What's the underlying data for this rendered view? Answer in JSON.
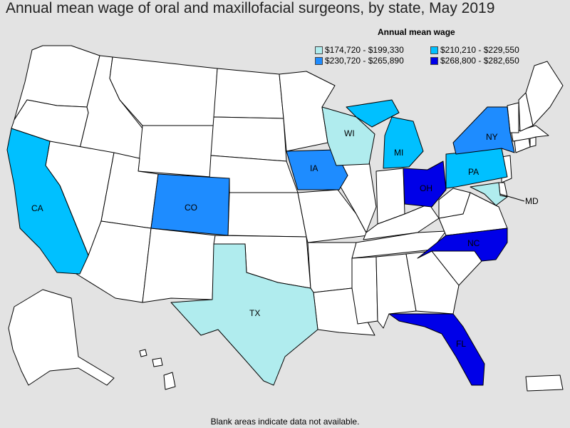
{
  "title": "Annual mean wage of oral and maxillofacial surgeons, by state, May 2019",
  "legend": {
    "title": "Annual mean wage",
    "items": [
      {
        "range": "$174,720 - $199,330",
        "color": "#b0ecee"
      },
      {
        "range": "$210,210 - $229,550",
        "color": "#00c0ff"
      },
      {
        "range": "$230,720 - $265,890",
        "color": "#1e8cff"
      },
      {
        "range": "$268,800 - $282,650",
        "color": "#0000e8"
      }
    ]
  },
  "colors": {
    "no_data": "#ffffff",
    "background": "#e3e3e3"
  },
  "states": {
    "CA": {
      "label": "CA",
      "tier": 1
    },
    "CO": {
      "label": "CO",
      "tier": 2
    },
    "TX": {
      "label": "TX",
      "tier": 0
    },
    "IA": {
      "label": "IA",
      "tier": 2
    },
    "WI": {
      "label": "WI",
      "tier": 0
    },
    "MI": {
      "label": "MI",
      "tier": 1
    },
    "OH": {
      "label": "OH",
      "tier": 3
    },
    "PA": {
      "label": "PA",
      "tier": 1
    },
    "NY": {
      "label": "NY",
      "tier": 2
    },
    "MD": {
      "label": "MD",
      "tier": 0
    },
    "NC": {
      "label": "NC",
      "tier": 3
    },
    "FL": {
      "label": "FL",
      "tier": 3
    }
  },
  "footnote": "Blank areas indicate data not available."
}
